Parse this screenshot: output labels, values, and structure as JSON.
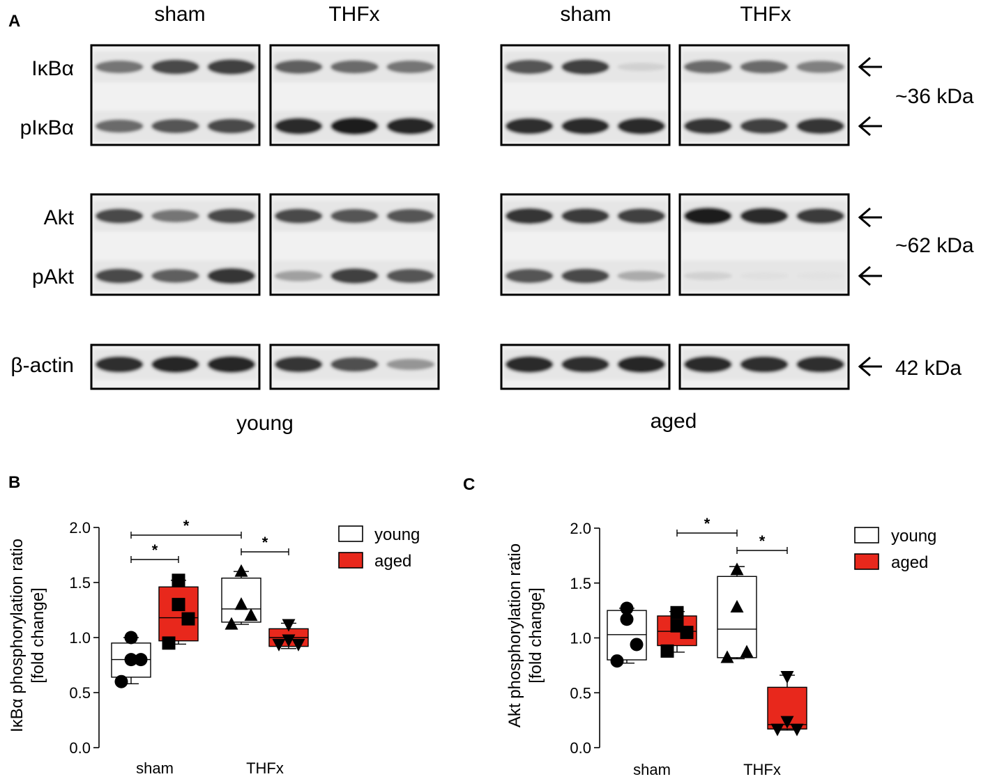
{
  "panel_a": {
    "label": "A",
    "groups": [
      {
        "name": "young",
        "conditions": [
          "sham",
          "THFx"
        ]
      },
      {
        "name": "aged",
        "conditions": [
          "sham",
          "THFx"
        ]
      }
    ],
    "rows": [
      {
        "label": "IκBα"
      },
      {
        "label": "pIκBα"
      },
      {
        "label": "Akt"
      },
      {
        "label": "pAkt"
      },
      {
        "label": "β-actin"
      }
    ],
    "weights": [
      "~36 kDa",
      "~62 kDa",
      "42 kDa"
    ],
    "band_intensity": {
      "IκBα": [
        [
          0.55,
          0.75,
          0.8
        ],
        [
          0.65,
          0.6,
          0.55
        ],
        [
          0.7,
          0.8,
          0.12
        ],
        [
          0.6,
          0.6,
          0.5
        ]
      ],
      "pIκBα": [
        [
          0.6,
          0.7,
          0.75
        ],
        [
          0.9,
          0.97,
          0.92
        ],
        [
          0.88,
          0.9,
          0.9
        ],
        [
          0.85,
          0.8,
          0.85
        ]
      ],
      "Akt": [
        [
          0.75,
          0.55,
          0.75
        ],
        [
          0.75,
          0.7,
          0.7
        ],
        [
          0.85,
          0.82,
          0.8
        ],
        [
          0.95,
          0.9,
          0.82
        ]
      ],
      "pAkt": [
        [
          0.75,
          0.65,
          0.85
        ],
        [
          0.35,
          0.8,
          0.7
        ],
        [
          0.7,
          0.75,
          0.3
        ],
        [
          0.12,
          0.05,
          0.04
        ]
      ],
      "β-actin": [
        [
          0.88,
          0.92,
          0.92
        ],
        [
          0.85,
          0.72,
          0.4
        ],
        [
          0.9,
          0.88,
          0.92
        ],
        [
          0.9,
          0.88,
          0.88
        ]
      ]
    }
  },
  "legend": {
    "young_label": "young",
    "aged_label": "aged",
    "young_color": "#ffffff",
    "aged_color": "#e8281c"
  },
  "chart_data": [
    {
      "panel": "B",
      "type": "box",
      "ylabel": "IκBα phosphorylation ratio\n[fold change]",
      "categories": [
        "sham",
        "THFx"
      ],
      "ylim": [
        0.0,
        2.0
      ],
      "yticks": [
        "0.0",
        "0.5",
        "1.0",
        "1.5",
        "2.0"
      ],
      "series": [
        {
          "name": "young",
          "color": "#ffffff",
          "boxes": [
            {
              "category": "sham",
              "min": 0.58,
              "q1": 0.64,
              "median": 0.8,
              "q3": 0.95,
              "max": 1.0,
              "points": [
                0.6,
                0.8,
                0.8,
                1.0
              ],
              "marker": "circle"
            },
            {
              "category": "THFx",
              "min": 1.12,
              "q1": 1.14,
              "median": 1.26,
              "q3": 1.54,
              "max": 1.6,
              "points": [
                1.12,
                1.2,
                1.3,
                1.6
              ],
              "marker": "triangle-up"
            }
          ]
        },
        {
          "name": "aged",
          "color": "#e8281c",
          "boxes": [
            {
              "category": "sham",
              "min": 0.94,
              "q1": 0.97,
              "median": 1.18,
              "q3": 1.46,
              "max": 1.52,
              "points": [
                0.95,
                1.17,
                1.3,
                1.52
              ],
              "marker": "square"
            },
            {
              "category": "THFx",
              "min": 0.9,
              "q1": 0.92,
              "median": 1.0,
              "q3": 1.08,
              "max": 1.13,
              "points": [
                0.94,
                0.94,
                0.98,
                1.12
              ],
              "marker": "triangle-down"
            }
          ]
        }
      ],
      "significance": [
        {
          "from": "young-sham",
          "to": "aged-sham",
          "label": "*"
        },
        {
          "from": "young-sham",
          "to": "young-THFx",
          "label": "*"
        },
        {
          "from": "young-THFx",
          "to": "aged-THFx",
          "label": "*"
        }
      ]
    },
    {
      "panel": "C",
      "type": "box",
      "ylabel": "Akt phosphorylation ratio\n[fold change]",
      "categories": [
        "sham",
        "THFx"
      ],
      "ylim": [
        0.0,
        2.0
      ],
      "yticks": [
        "0.0",
        "0.5",
        "1.0",
        "1.5",
        "2.0"
      ],
      "series": [
        {
          "name": "young",
          "color": "#ffffff",
          "boxes": [
            {
              "category": "sham",
              "min": 0.77,
              "q1": 0.8,
              "median": 1.03,
              "q3": 1.25,
              "max": 1.27,
              "points": [
                0.79,
                0.94,
                1.17,
                1.27
              ],
              "marker": "circle"
            },
            {
              "category": "THFx",
              "min": 0.81,
              "q1": 0.82,
              "median": 1.08,
              "q3": 1.56,
              "max": 1.65,
              "points": [
                0.82,
                0.87,
                1.28,
                1.62
              ],
              "marker": "triangle-up"
            }
          ]
        },
        {
          "name": "aged",
          "color": "#e8281c",
          "boxes": [
            {
              "category": "sham",
              "min": 0.87,
              "q1": 0.93,
              "median": 1.06,
              "q3": 1.2,
              "max": 1.24,
              "points": [
                0.88,
                1.05,
                1.11,
                1.23
              ],
              "marker": "square"
            },
            {
              "category": "THFx",
              "min": 0.16,
              "q1": 0.17,
              "median": 0.21,
              "q3": 0.55,
              "max": 0.66,
              "points": [
                0.17,
                0.17,
                0.24,
                0.65
              ],
              "marker": "triangle-down"
            }
          ]
        }
      ],
      "significance": [
        {
          "from": "young-THFx",
          "to": "aged-sham",
          "label": "*"
        },
        {
          "from": "young-THFx",
          "to": "aged-THFx",
          "label": "*"
        }
      ]
    }
  ]
}
